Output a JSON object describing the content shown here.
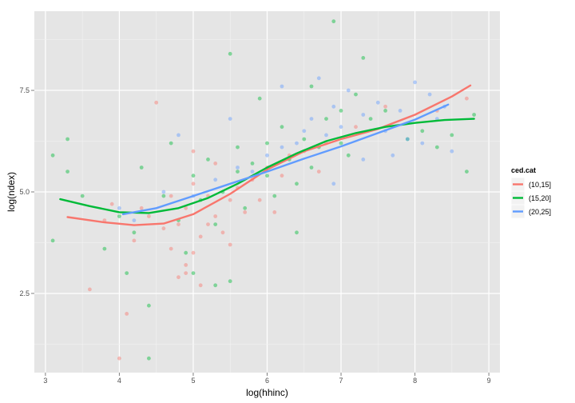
{
  "chart_data": {
    "type": "scatter",
    "xlabel": "log(hhinc)",
    "ylabel": "log(ndex)",
    "xlim": [
      2.85,
      9.15
    ],
    "ylim": [
      0.55,
      9.45
    ],
    "x_ticks": [
      3,
      4,
      5,
      6,
      7,
      8,
      9
    ],
    "x_tick_labels": [
      "3",
      "4",
      "5",
      "6",
      "7",
      "8",
      "9"
    ],
    "y_ticks": [
      2.5,
      5.0,
      7.5
    ],
    "y_tick_labels": [
      "2.5",
      "5.0",
      "7.5"
    ],
    "grid": true,
    "legend": {
      "title": "ced.cat",
      "placement": "right"
    },
    "series": [
      {
        "name": "(10,15]",
        "color": "#F8766D",
        "points": [
          [
            4.7,
            3.6
          ],
          [
            4.9,
            3.2
          ],
          [
            5.1,
            3.9
          ],
          [
            4.8,
            4.2
          ],
          [
            5.3,
            4.4
          ],
          [
            5.0,
            3.5
          ],
          [
            4.6,
            4.1
          ],
          [
            5.5,
            4.8
          ],
          [
            5.2,
            4.9
          ],
          [
            4.9,
            4.6
          ],
          [
            5.6,
            5.1
          ],
          [
            5.8,
            5.3
          ],
          [
            6.0,
            5.6
          ],
          [
            6.3,
            5.9
          ],
          [
            5.4,
            4.0
          ],
          [
            5.7,
            4.5
          ],
          [
            4.8,
            2.9
          ],
          [
            5.1,
            2.7
          ],
          [
            5.9,
            4.8
          ],
          [
            6.2,
            5.4
          ],
          [
            6.5,
            6.0
          ],
          [
            6.8,
            6.2
          ],
          [
            4.4,
            4.4
          ],
          [
            4.2,
            3.8
          ],
          [
            3.9,
            4.7
          ],
          [
            3.6,
            2.6
          ],
          [
            4.0,
            0.9
          ],
          [
            4.1,
            2.0
          ],
          [
            4.5,
            7.2
          ],
          [
            5.0,
            6.0
          ],
          [
            5.3,
            5.7
          ],
          [
            6.7,
            5.5
          ],
          [
            7.2,
            6.6
          ],
          [
            7.6,
            7.1
          ],
          [
            8.3,
            7.0
          ],
          [
            8.7,
            7.3
          ],
          [
            4.7,
            4.9
          ],
          [
            5.2,
            4.2
          ],
          [
            5.5,
            3.7
          ],
          [
            4.9,
            3.0
          ],
          [
            6.1,
            4.5
          ],
          [
            5.0,
            5.2
          ],
          [
            4.3,
            4.6
          ],
          [
            3.8,
            4.3
          ]
        ],
        "trend": [
          [
            3.3,
            4.38
          ],
          [
            3.8,
            4.25
          ],
          [
            4.2,
            4.18
          ],
          [
            4.6,
            4.22
          ],
          [
            5.0,
            4.45
          ],
          [
            5.5,
            4.95
          ],
          [
            6.0,
            5.55
          ],
          [
            6.5,
            6.0
          ],
          [
            7.0,
            6.3
          ],
          [
            7.5,
            6.55
          ],
          [
            8.0,
            6.9
          ],
          [
            8.5,
            7.35
          ],
          [
            8.75,
            7.62
          ]
        ]
      },
      {
        "name": "(15,20]",
        "color": "#00BA38",
        "points": [
          [
            3.1,
            5.9
          ],
          [
            3.1,
            3.8
          ],
          [
            3.3,
            6.3
          ],
          [
            3.3,
            5.5
          ],
          [
            3.5,
            4.9
          ],
          [
            3.8,
            3.6
          ],
          [
            4.0,
            4.4
          ],
          [
            4.1,
            3.0
          ],
          [
            4.4,
            2.2
          ],
          [
            4.4,
            0.9
          ],
          [
            4.6,
            4.9
          ],
          [
            4.8,
            4.3
          ],
          [
            5.0,
            5.4
          ],
          [
            5.2,
            5.8
          ],
          [
            5.4,
            5.0
          ],
          [
            5.5,
            8.4
          ],
          [
            5.6,
            6.1
          ],
          [
            5.8,
            5.7
          ],
          [
            6.0,
            5.4
          ],
          [
            6.0,
            6.2
          ],
          [
            6.2,
            6.6
          ],
          [
            6.3,
            5.8
          ],
          [
            6.5,
            6.3
          ],
          [
            6.6,
            5.6
          ],
          [
            6.8,
            6.8
          ],
          [
            6.9,
            9.2
          ],
          [
            7.0,
            6.2
          ],
          [
            7.1,
            5.9
          ],
          [
            7.2,
            7.4
          ],
          [
            7.3,
            8.3
          ],
          [
            7.4,
            6.8
          ],
          [
            7.6,
            7.0
          ],
          [
            7.9,
            6.3
          ],
          [
            8.1,
            6.5
          ],
          [
            8.3,
            6.1
          ],
          [
            8.5,
            6.4
          ],
          [
            8.7,
            5.5
          ],
          [
            8.8,
            6.9
          ],
          [
            5.3,
            4.2
          ],
          [
            5.7,
            4.6
          ],
          [
            6.1,
            4.9
          ],
          [
            6.4,
            5.2
          ],
          [
            4.9,
            3.5
          ],
          [
            5.0,
            3.0
          ],
          [
            5.3,
            2.7
          ],
          [
            5.5,
            2.8
          ],
          [
            6.4,
            4.0
          ],
          [
            4.3,
            5.6
          ],
          [
            4.7,
            6.2
          ],
          [
            5.9,
            7.3
          ],
          [
            6.6,
            7.6
          ],
          [
            7.0,
            7.0
          ],
          [
            5.1,
            4.8
          ],
          [
            5.6,
            5.5
          ],
          [
            6.7,
            6.1
          ],
          [
            4.2,
            4.0
          ]
        ],
        "trend": [
          [
            3.2,
            4.82
          ],
          [
            3.6,
            4.65
          ],
          [
            4.0,
            4.5
          ],
          [
            4.4,
            4.48
          ],
          [
            4.8,
            4.6
          ],
          [
            5.2,
            4.85
          ],
          [
            5.6,
            5.2
          ],
          [
            6.0,
            5.6
          ],
          [
            6.4,
            5.95
          ],
          [
            6.8,
            6.25
          ],
          [
            7.2,
            6.45
          ],
          [
            7.6,
            6.6
          ],
          [
            8.0,
            6.7
          ],
          [
            8.4,
            6.77
          ],
          [
            8.8,
            6.8
          ]
        ]
      },
      {
        "name": "(20,25]",
        "color": "#619CFF",
        "points": [
          [
            4.0,
            4.6
          ],
          [
            4.2,
            4.3
          ],
          [
            4.6,
            5.0
          ],
          [
            5.0,
            4.9
          ],
          [
            5.3,
            5.3
          ],
          [
            5.6,
            5.6
          ],
          [
            5.8,
            5.5
          ],
          [
            6.0,
            5.9
          ],
          [
            6.2,
            6.1
          ],
          [
            6.4,
            6.2
          ],
          [
            6.5,
            6.5
          ],
          [
            6.6,
            6.8
          ],
          [
            6.8,
            6.4
          ],
          [
            6.9,
            7.1
          ],
          [
            7.0,
            6.6
          ],
          [
            7.1,
            7.5
          ],
          [
            7.3,
            6.9
          ],
          [
            7.5,
            7.2
          ],
          [
            7.6,
            6.5
          ],
          [
            7.8,
            7.0
          ],
          [
            7.9,
            6.3
          ],
          [
            8.0,
            7.7
          ],
          [
            8.2,
            7.4
          ],
          [
            8.1,
            6.2
          ],
          [
            8.4,
            7.1
          ],
          [
            8.3,
            6.8
          ],
          [
            6.7,
            7.8
          ],
          [
            6.2,
            7.6
          ],
          [
            5.5,
            6.8
          ],
          [
            7.3,
            5.8
          ],
          [
            7.7,
            5.9
          ],
          [
            8.5,
            6.0
          ],
          [
            6.9,
            5.2
          ],
          [
            4.8,
            6.4
          ]
        ],
        "trend": [
          [
            4.05,
            4.45
          ],
          [
            4.5,
            4.6
          ],
          [
            5.0,
            4.9
          ],
          [
            5.5,
            5.2
          ],
          [
            6.0,
            5.5
          ],
          [
            6.5,
            5.82
          ],
          [
            7.0,
            6.12
          ],
          [
            7.5,
            6.45
          ],
          [
            8.0,
            6.78
          ],
          [
            8.45,
            7.15
          ]
        ]
      }
    ]
  }
}
